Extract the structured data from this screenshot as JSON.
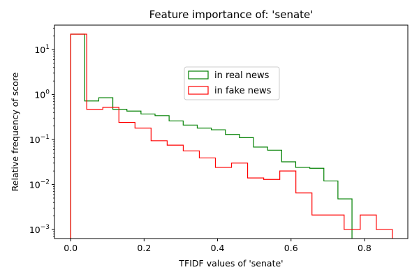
{
  "chart_data": {
    "type": "histogram",
    "title": "Feature importance of: 'senate'",
    "xlabel": "TFIDF values of 'senate'",
    "ylabel": "Relative frequency of score",
    "y_scale": "log",
    "xlim": [
      -0.044,
      0.918
    ],
    "ylim": [
      0.00063,
      35
    ],
    "x_ticks": [
      0.0,
      0.2,
      0.4,
      0.6,
      0.8
    ],
    "x_tick_labels": [
      "0.0",
      "0.2",
      "0.4",
      "0.6",
      "0.8"
    ],
    "y_ticks": [
      0.001,
      0.01,
      0.1,
      1,
      10
    ],
    "y_tick_labels": [
      "10^-3",
      "10^-2",
      "10^-1",
      "10^0",
      "10^1"
    ],
    "legend": {
      "placement": "center-right"
    },
    "series": [
      {
        "name": "in real news",
        "color": "#008000",
        "bin_edges": [
          0.0,
          0.0383,
          0.0766,
          0.1149,
          0.1532,
          0.1915,
          0.2298,
          0.2681,
          0.3064,
          0.3447,
          0.383,
          0.4213,
          0.4596,
          0.4979,
          0.5362,
          0.5745,
          0.6128,
          0.6511,
          0.6894,
          0.7277,
          0.766
        ],
        "values": [
          22,
          0.72,
          0.85,
          0.47,
          0.43,
          0.37,
          0.34,
          0.26,
          0.21,
          0.18,
          0.165,
          0.13,
          0.11,
          0.068,
          0.058,
          0.032,
          0.024,
          0.023,
          0.012,
          0.0048
        ]
      },
      {
        "name": "in fake news",
        "color": "#ff0000",
        "bin_edges": [
          0.0,
          0.0438,
          0.0876,
          0.1314,
          0.1752,
          0.219,
          0.2628,
          0.3066,
          0.3504,
          0.3942,
          0.438,
          0.4818,
          0.5256,
          0.5694,
          0.6132,
          0.657,
          0.7008,
          0.7446,
          0.7884,
          0.8322,
          0.876
        ],
        "values": [
          22,
          0.47,
          0.52,
          0.24,
          0.18,
          0.094,
          0.075,
          0.056,
          0.039,
          0.024,
          0.03,
          0.014,
          0.013,
          0.02,
          0.0065,
          0.0021,
          0.0021,
          0.001,
          0.0021,
          0.001
        ]
      }
    ]
  }
}
